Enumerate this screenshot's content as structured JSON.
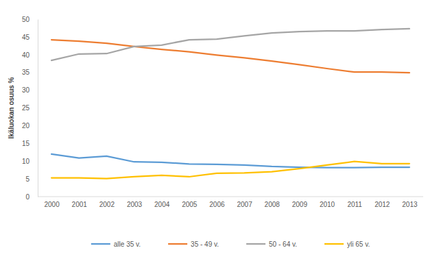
{
  "chart_data": {
    "type": "line",
    "y_label": "Ikäluokan osuus %",
    "categories": [
      "2000",
      "2001",
      "2002",
      "2003",
      "2004",
      "2005",
      "2006",
      "2007",
      "2008",
      "2009",
      "2010",
      "2011",
      "2012",
      "2013"
    ],
    "series": [
      {
        "name": "alle 35 v.",
        "color": "#5b9bd5",
        "values": [
          12.0,
          10.9,
          11.4,
          9.8,
          9.7,
          9.2,
          9.1,
          8.9,
          8.5,
          8.3,
          8.2,
          8.2,
          8.3,
          8.3
        ]
      },
      {
        "name": "35 - 49 v.",
        "color": "#ed7d31",
        "values": [
          44.2,
          43.8,
          43.2,
          42.3,
          41.5,
          40.8,
          39.9,
          39.1,
          38.2,
          37.2,
          36.1,
          35.1,
          35.1,
          34.9
        ]
      },
      {
        "name": "50 - 64 v.",
        "color": "#a5a5a5",
        "values": [
          38.4,
          40.2,
          40.3,
          42.3,
          42.7,
          44.2,
          44.4,
          45.3,
          46.1,
          46.5,
          46.7,
          46.7,
          47.1,
          47.3
        ]
      },
      {
        "name": "yli 65 v.",
        "color": "#ffc000",
        "values": [
          5.3,
          5.3,
          5.1,
          5.6,
          6.0,
          5.6,
          6.6,
          6.7,
          7.0,
          7.9,
          8.9,
          9.9,
          9.3,
          9.3
        ]
      }
    ],
    "ylim": [
      0,
      50
    ],
    "yticks": [
      0,
      5,
      10,
      15,
      20,
      25,
      30,
      35,
      40,
      45,
      50
    ],
    "grid": false,
    "legend": "bottom"
  }
}
